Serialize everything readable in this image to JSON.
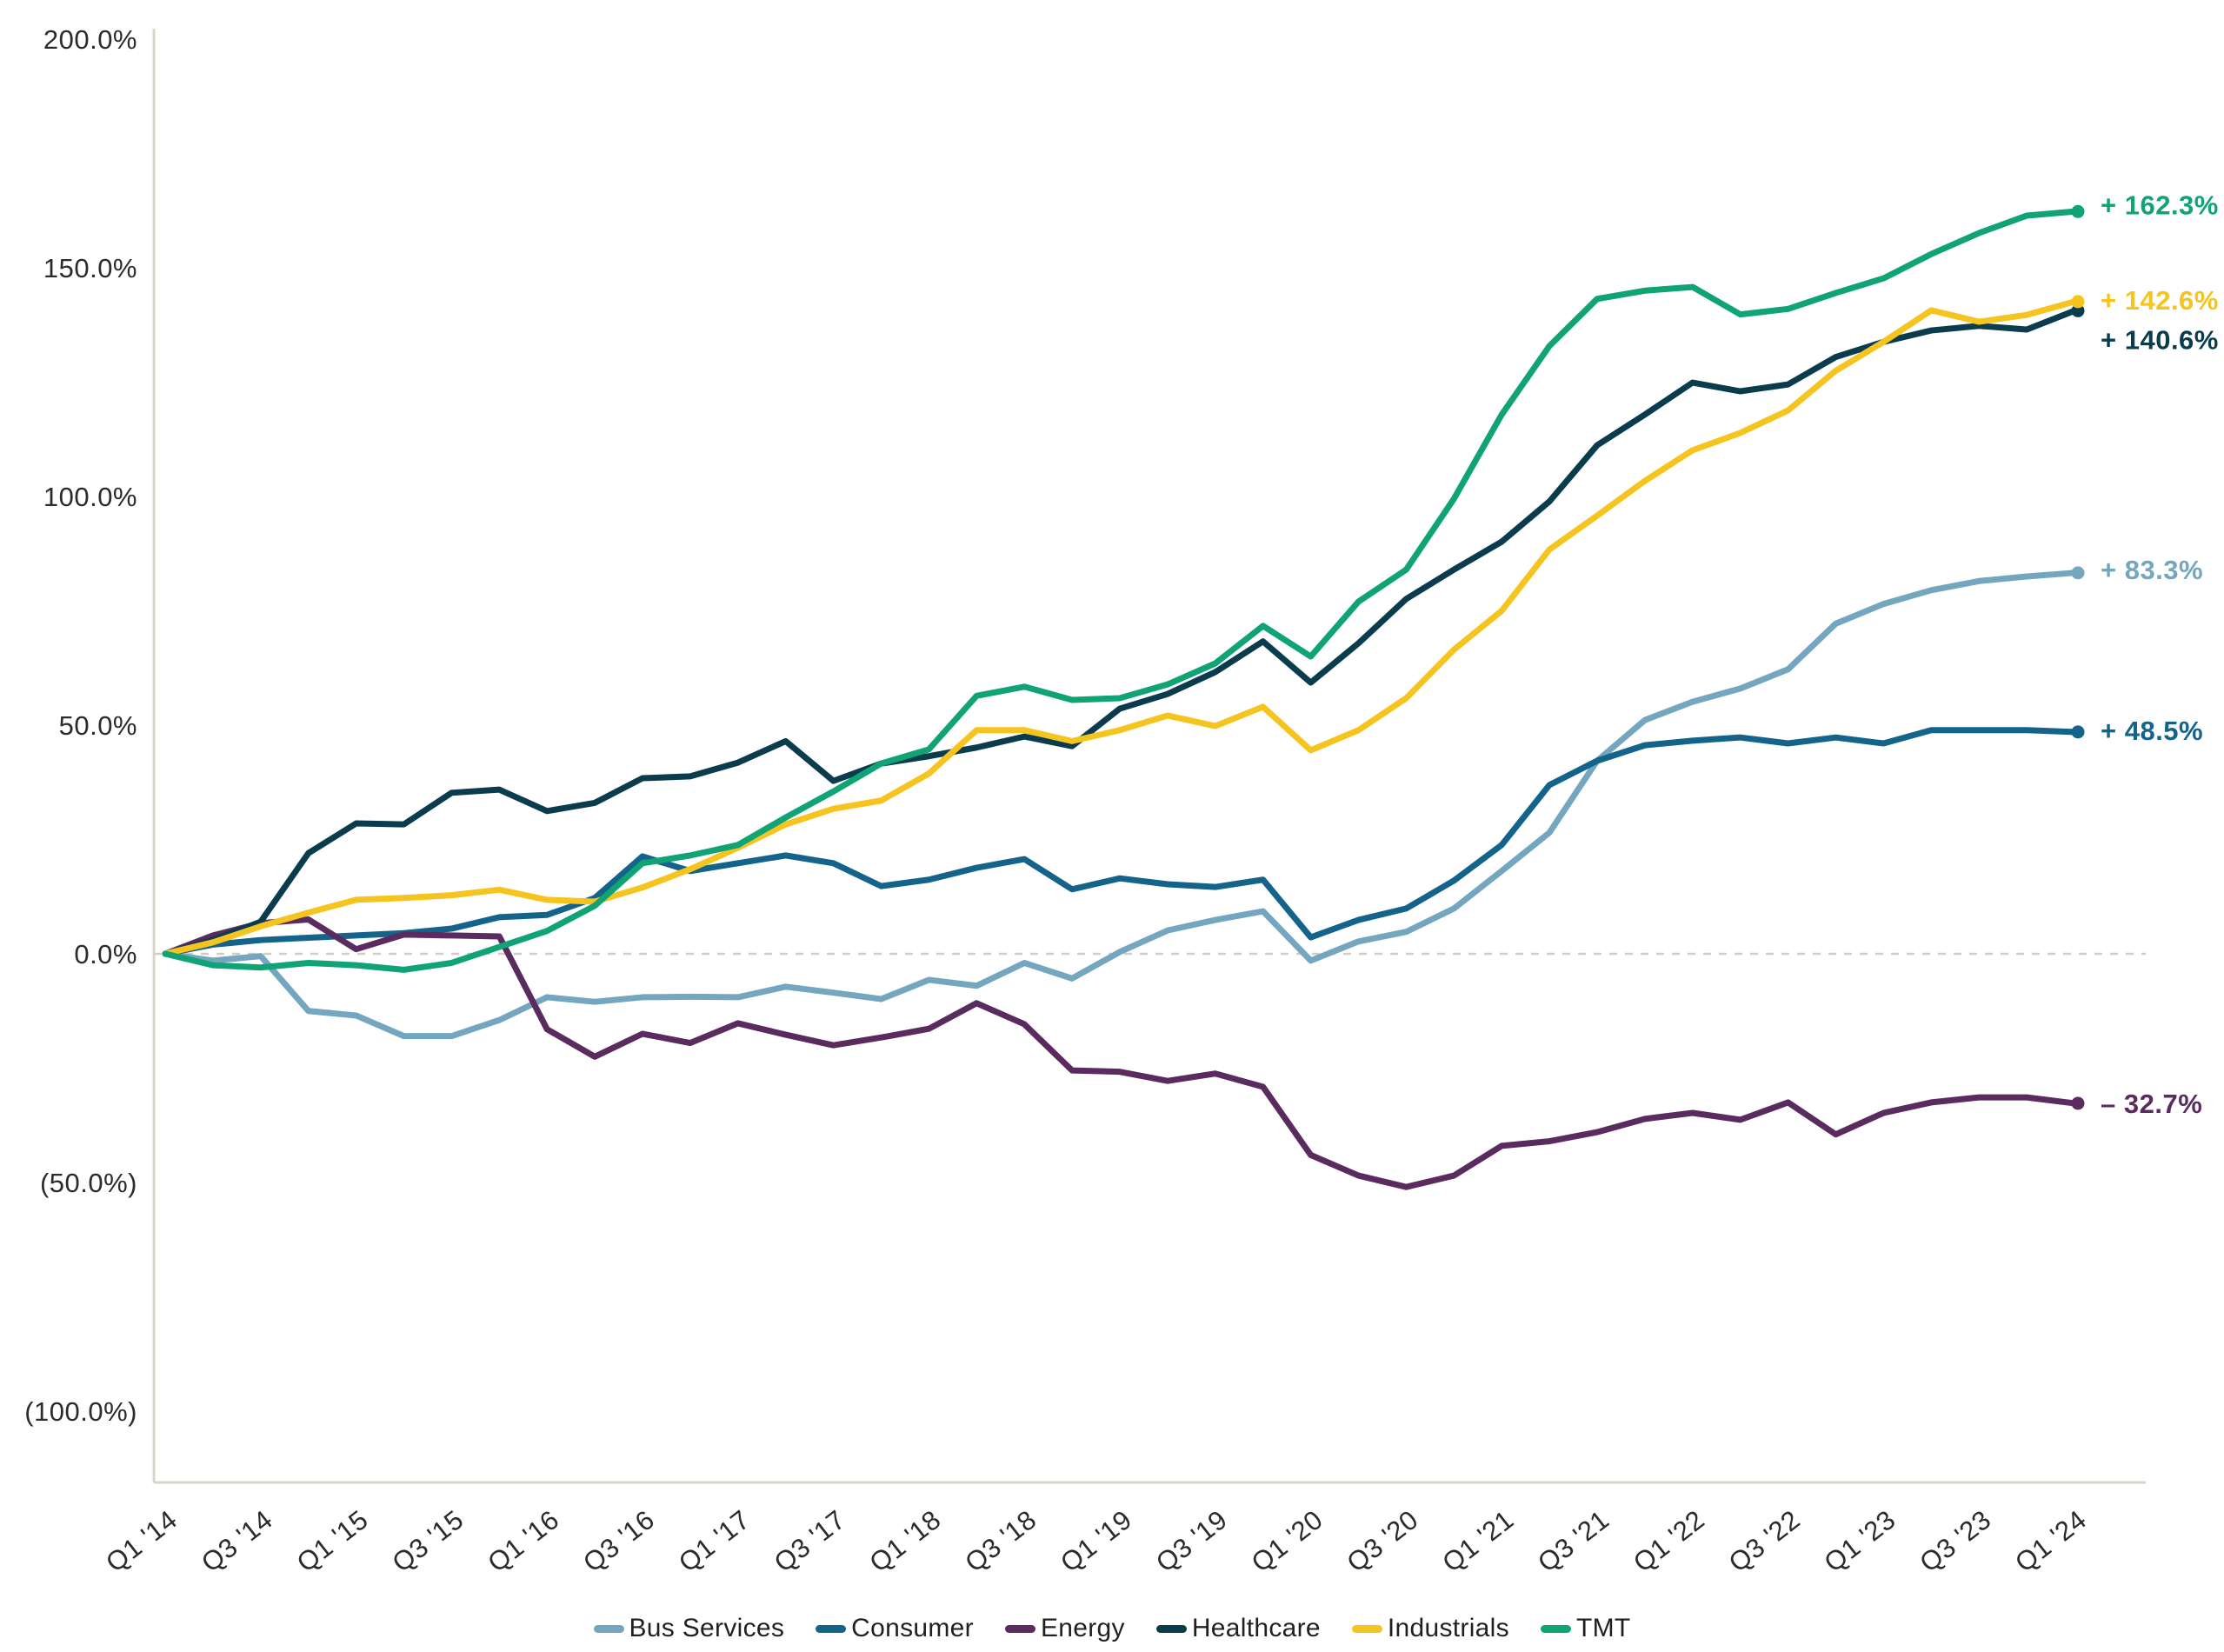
{
  "chart_data": {
    "type": "line",
    "title": "",
    "xlabel": "",
    "ylabel": "",
    "grid": "zero-baseline-dashed-only",
    "legend_position": "bottom-center",
    "ylim": [
      -115.6,
      200
    ],
    "y_ticks": [
      {
        "value": 200,
        "label": "200.0%"
      },
      {
        "value": 150,
        "label": "150.0%"
      },
      {
        "value": 100,
        "label": "100.0%"
      },
      {
        "value": 50,
        "label": "50.0%"
      },
      {
        "value": 0,
        "label": "0.0%"
      },
      {
        "value": -50,
        "label": "(50.0%)"
      },
      {
        "value": -100,
        "label": "(100.0%)"
      }
    ],
    "x_tick_labels": [
      "Q1 '14",
      "Q3 '14",
      "Q1 '15",
      "Q3 '15",
      "Q1 '16",
      "Q3 '16",
      "Q1 '17",
      "Q3 '17",
      "Q1 '18",
      "Q3 '18",
      "Q1 '19",
      "Q3 '19",
      "Q1 '20",
      "Q3 '20",
      "Q1 '21",
      "Q3 '21",
      "Q1 '22",
      "Q3 '22",
      "Q1 '23",
      "Q3 '23",
      "Q1 '24"
    ],
    "x_tick_every": 2,
    "quarters": [
      "Q1 '14",
      "Q2 '14",
      "Q3 '14",
      "Q4 '14",
      "Q1 '15",
      "Q2 '15",
      "Q3 '15",
      "Q4 '15",
      "Q1 '16",
      "Q2 '16",
      "Q3 '16",
      "Q4 '16",
      "Q1 '17",
      "Q2 '17",
      "Q3 '17",
      "Q4 '17",
      "Q1 '18",
      "Q2 '18",
      "Q3 '18",
      "Q4 '18",
      "Q1 '19",
      "Q2 '19",
      "Q3 '19",
      "Q4 '19",
      "Q1 '20",
      "Q2 '20",
      "Q3 '20",
      "Q4 '20",
      "Q1 '21",
      "Q2 '21",
      "Q3 '21",
      "Q4 '21",
      "Q1 '22",
      "Q2 '22",
      "Q3 '22",
      "Q4 '22",
      "Q1 '23",
      "Q2 '23",
      "Q3 '23",
      "Q4 '23",
      "Q1 '24"
    ],
    "series": [
      {
        "name": "Bus Services",
        "color": "#74a7bf",
        "end_label": "+ 83.3%",
        "end_value": 83.3,
        "label_dy": -4,
        "values": [
          0,
          -1.5,
          -0.5,
          -12.5,
          -13.5,
          -18,
          -18,
          -14.5,
          -9.5,
          -10.5,
          -9.5,
          -9.4,
          -9.5,
          -7.2,
          -8.5,
          -9.9,
          -5.7,
          -7,
          -2,
          -5.4,
          0.4,
          5.1,
          7.4,
          9.3,
          -1.5,
          2.7,
          4.8,
          9.9,
          18.1,
          26.5,
          42.2,
          51.1,
          55.1,
          58,
          62.2,
          72.2,
          76.5,
          79.5,
          81.5,
          82.5,
          83.3
        ]
      },
      {
        "name": "Consumer",
        "color": "#14638a",
        "end_label": "+ 48.5%",
        "end_value": 48.5,
        "label_dy": -2,
        "values": [
          0,
          2,
          3,
          3.5,
          4,
          4.5,
          5.5,
          8,
          8.5,
          12.2,
          21.3,
          18.1,
          19.8,
          21.5,
          19.8,
          14.8,
          16.2,
          18.8,
          20.7,
          14.1,
          16.5,
          15.2,
          14.6,
          16.2,
          3.6,
          7.4,
          9.9,
          16,
          23.8,
          36.9,
          42.2,
          45.6,
          46.6,
          47.3,
          46,
          47.3,
          46,
          48.9,
          48.9,
          48.9,
          48.5
        ]
      },
      {
        "name": "Energy",
        "color": "#5a2b5f",
        "end_label": "– 32.7%",
        "end_value": -32.7,
        "label_dy": 0,
        "values": [
          0,
          4,
          6.7,
          7.5,
          1,
          4.2,
          4,
          3.8,
          -16.5,
          -22.5,
          -17.5,
          -19.5,
          -15.2,
          -17.7,
          -20,
          -18.3,
          -16.4,
          -10.8,
          -15.4,
          -25.5,
          -25.8,
          -27.8,
          -26.2,
          -29.1,
          -44,
          -48.5,
          -51,
          -48.5,
          -42,
          -41,
          -39,
          -36.1,
          -34.8,
          -36.3,
          -32.5,
          -39.5,
          -34.8,
          -32.5,
          -31.4,
          -31.4,
          -32.7
        ]
      },
      {
        "name": "Healthcare",
        "color": "#0b3c4d",
        "end_label": "+ 140.6%",
        "end_value": 140.6,
        "label_dy": 33,
        "values": [
          0,
          3,
          7,
          22,
          28.5,
          28.3,
          35.2,
          35.9,
          31.2,
          33,
          38.4,
          38.8,
          41.8,
          46.5,
          37.8,
          41.6,
          43.2,
          45.1,
          47.5,
          45.4,
          53.6,
          56.8,
          61.6,
          68.3,
          59.3,
          67.9,
          77.6,
          84,
          90.1,
          98.9,
          111.2,
          117.9,
          124.9,
          123,
          124.5,
          130.5,
          133.8,
          136.3,
          137.3,
          136.5,
          140.6
        ]
      },
      {
        "name": "Industrials",
        "color": "#f5c41e",
        "end_label": "+ 142.6%",
        "end_value": 142.6,
        "label_dy": -2,
        "values": [
          0,
          2.5,
          6,
          9,
          11.8,
          12.2,
          12.8,
          14,
          11.8,
          11.4,
          14.5,
          18.5,
          23.2,
          28.3,
          31.7,
          33.5,
          39.4,
          48.9,
          48.9,
          46.5,
          48.9,
          52.1,
          49.8,
          54,
          44.5,
          48.9,
          55.9,
          66.5,
          75,
          88.4,
          95.8,
          103.4,
          110.1,
          113.9,
          118.8,
          127.5,
          133.8,
          140.7,
          138.2,
          139.7,
          142.6
        ]
      },
      {
        "name": "TMT",
        "color": "#0fa376",
        "end_label": "+ 162.3%",
        "end_value": 162.3,
        "label_dy": -8,
        "values": [
          0,
          -2.5,
          -3,
          -2,
          -2.5,
          -3.5,
          -2,
          1.5,
          5,
          10.5,
          19.8,
          21.5,
          23.8,
          29.8,
          35.5,
          41.6,
          44.7,
          56.4,
          58.4,
          55.5,
          55.9,
          58.9,
          63.5,
          71.7,
          65,
          77,
          84,
          99.5,
          117.9,
          132.9,
          143.2,
          145,
          145.8,
          139.8,
          141,
          144.5,
          147.7,
          153,
          157.6,
          161.4,
          162.3
        ]
      }
    ]
  },
  "legend": {
    "items": [
      {
        "label": "Bus Services",
        "color": "#74a7bf"
      },
      {
        "label": "Consumer",
        "color": "#14638a"
      },
      {
        "label": "Energy",
        "color": "#5a2b5f"
      },
      {
        "label": "Healthcare",
        "color": "#0b3c4d"
      },
      {
        "label": "Industrials",
        "color": "#f5c41e"
      },
      {
        "label": "TMT",
        "color": "#0fa376"
      }
    ]
  },
  "colors": {
    "axis_line": "#d9d4ca",
    "zero_line": "#d2ccc2",
    "tick_text": "#2b2b2b"
  }
}
